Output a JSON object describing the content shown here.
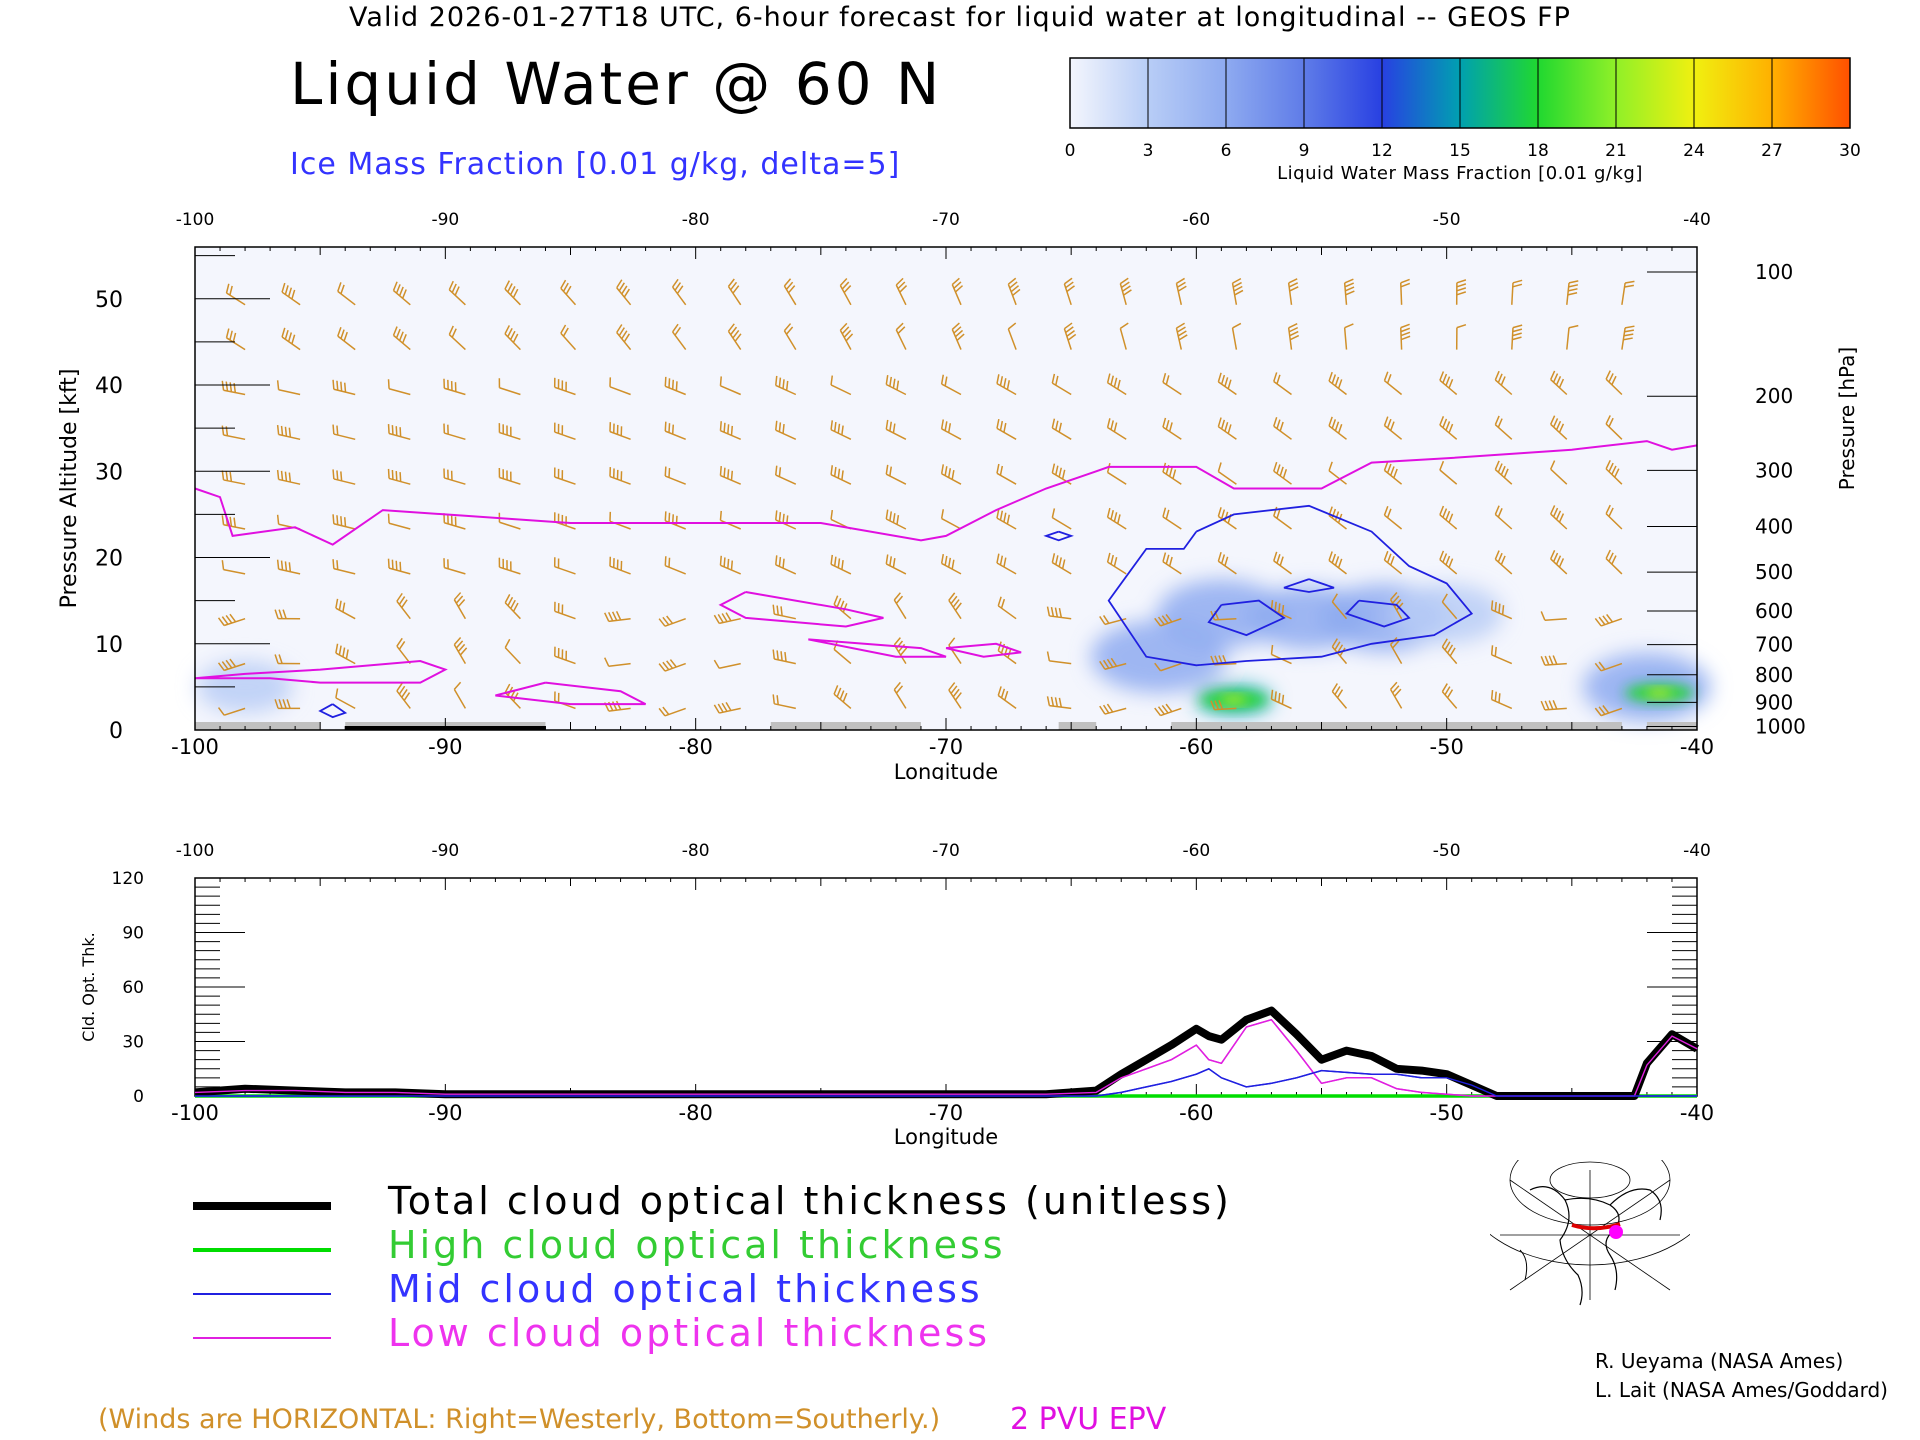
{
  "header": {
    "valid_line": "Valid 2026-01-27T18 UTC, 6-hour forecast for liquid water at longitudinal -- GEOS FP",
    "title": "Liquid Water @ 60 N",
    "subtitle": "Ice Mass Fraction [0.01 g/kg, delta=5]"
  },
  "colorbar": {
    "ticks": [
      "0",
      "3",
      "6",
      "9",
      "12",
      "15",
      "18",
      "21",
      "24",
      "27",
      "30"
    ],
    "colors": [
      "#f4f6fd",
      "#b8cdf6",
      "#8eaaf0",
      "#5f7ce8",
      "#2840e2",
      "#00a0b0",
      "#20d830",
      "#90f028",
      "#f0f010",
      "#ffb000",
      "#ff5000"
    ],
    "label": "Liquid Water Mass Fraction [0.01 g/kg]"
  },
  "chart_data": [
    {
      "type": "heatmap",
      "title": "Liquid Water @ 60 N",
      "xlabel": "Longitude",
      "ylabel_left": "Pressure Altitude [kft]",
      "ylabel_right": "Pressure [hPa]",
      "xlim": [
        -100,
        -40
      ],
      "ylim": [
        0,
        56
      ],
      "x_ticks": [
        "-100",
        "-90",
        "-80",
        "-70",
        "-60",
        "-50",
        "-40"
      ],
      "y_ticks": [
        "0",
        "10",
        "20",
        "30",
        "40",
        "50"
      ],
      "pressure_ticks": [
        {
          "label": "100",
          "kft": 53.1
        },
        {
          "label": "200",
          "kft": 38.7
        },
        {
          "label": "300",
          "kft": 30.1
        },
        {
          "label": "400",
          "kft": 23.6
        },
        {
          "label": "500",
          "kft": 18.3
        },
        {
          "label": "600",
          "kft": 13.8
        },
        {
          "label": "700",
          "kft": 9.9
        },
        {
          "label": "800",
          "kft": 6.4
        },
        {
          "label": "900",
          "kft": 3.2
        },
        {
          "label": "1000",
          "kft": 0.4
        }
      ],
      "liquid_blobs": [
        {
          "lon": -58.5,
          "kft": 3.5,
          "value": 15
        },
        {
          "lon": -41.5,
          "kft": 4.3,
          "value": 15
        },
        {
          "lon": -59.0,
          "kft": 13.5,
          "value": 6
        },
        {
          "lon": -55.5,
          "kft": 13.0,
          "value": 5
        },
        {
          "lon": -52.5,
          "kft": 13.0,
          "value": 6
        },
        {
          "lon": -50.0,
          "kft": 13.5,
          "value": 4
        },
        {
          "lon": -61.5,
          "kft": 8.5,
          "value": 7
        },
        {
          "lon": -42.0,
          "kft": 5.0,
          "value": 6
        },
        {
          "lon": -98.0,
          "kft": 5.0,
          "value": 2
        }
      ],
      "epv_2pvu_kft": {
        "lon": [
          -100,
          -99,
          -98.5,
          -96,
          -94.5,
          -92.5,
          -90,
          -85,
          -80,
          -75,
          -71,
          -70,
          -68,
          -66,
          -64,
          -63.5,
          -60,
          -58.5,
          -55,
          -53,
          -50,
          -45,
          -42,
          -41,
          -40
        ],
        "kft": [
          28,
          27,
          22.5,
          23.5,
          21.5,
          25.5,
          25,
          24,
          24,
          24,
          22,
          22.5,
          25.5,
          28,
          30,
          30.5,
          30.5,
          28,
          28,
          31,
          31.5,
          32.5,
          33.5,
          32.5,
          33
        ]
      },
      "epv_low_contours_kft": [
        {
          "lon": [
            -100,
            -97,
            -95,
            -91,
            -90,
            -91,
            -95,
            -98,
            -100
          ],
          "kft": [
            6,
            6,
            5.5,
            5.5,
            7,
            8,
            7,
            6.5,
            6
          ]
        },
        {
          "lon": [
            -78,
            -74,
            -72.5,
            -74,
            -78,
            -79,
            -78
          ],
          "kft": [
            16,
            14,
            13,
            12,
            13,
            14.5,
            16
          ]
        },
        {
          "lon": [
            -86,
            -83,
            -82,
            -85,
            -88,
            -86
          ],
          "kft": [
            5.5,
            4.5,
            3,
            3,
            4,
            5.5
          ]
        },
        {
          "lon": [
            -75.5,
            -71,
            -70,
            -72,
            -75.5
          ],
          "kft": [
            10.5,
            9.5,
            8.5,
            8.5,
            10.5
          ]
        },
        {
          "lon": [
            -70,
            -68,
            -67,
            -68.5,
            -70
          ],
          "kft": [
            9.5,
            10,
            9,
            8.5,
            9.5
          ]
        }
      ],
      "ice_contours_kft": [
        {
          "lon": [
            -60,
            -58.5,
            -55.5,
            -53,
            -51.5,
            -50,
            -49,
            -50.5,
            -53,
            -55,
            -58,
            -60,
            -62,
            -63.5,
            -62,
            -60.5,
            -60
          ],
          "kft": [
            23,
            25,
            26,
            23,
            19,
            17,
            13.5,
            11,
            10,
            8.5,
            8,
            7.5,
            8.5,
            15,
            21,
            21,
            23
          ]
        },
        {
          "lon": [
            -59,
            -57.5,
            -56.5,
            -58,
            -59.5,
            -59
          ],
          "kft": [
            14.5,
            15,
            13,
            11,
            12.5,
            14.5
          ]
        },
        {
          "lon": [
            -53.5,
            -52,
            -51.5,
            -52.5,
            -54,
            -53.5
          ],
          "kft": [
            15,
            14.5,
            13,
            12,
            13.5,
            15
          ]
        },
        {
          "lon": [
            -55.5,
            -54.5,
            -55.5,
            -56.5,
            -55.5
          ],
          "kft": [
            17.5,
            16.5,
            16,
            16.5,
            17.5
          ]
        },
        {
          "lon": [
            -94.5,
            -94,
            -94.5,
            -95,
            -94.5
          ],
          "kft": [
            3.0,
            2.0,
            1.5,
            2.2,
            3.0
          ]
        },
        {
          "lon": [
            -65.5,
            -65,
            -65.5,
            -66,
            -65.5
          ],
          "kft": [
            23,
            22.5,
            22,
            22.5,
            23
          ]
        }
      ],
      "wind_note": "(Winds are HORIZONTAL: Right=Westerly, Bottom=Southerly.)",
      "epv_label": "2 PVU EPV"
    },
    {
      "type": "line",
      "xlabel": "Longitude",
      "ylabel": "Cld. Opt. Thk.",
      "xlim": [
        -100,
        -40
      ],
      "ylim": [
        0,
        120
      ],
      "x_ticks": [
        "-100",
        "-90",
        "-80",
        "-70",
        "-60",
        "-50",
        "-40"
      ],
      "y_ticks": [
        "0",
        "30",
        "60",
        "90",
        "120"
      ],
      "x": [
        -100,
        -98,
        -96,
        -94,
        -92,
        -90,
        -88,
        -86,
        -84,
        -82,
        -80,
        -78,
        -76,
        -74,
        -72,
        -70,
        -68,
        -66,
        -64,
        -63,
        -62,
        -61,
        -60,
        -59.5,
        -59,
        -58,
        -57,
        -56,
        -55,
        -54,
        -53,
        -52,
        -51,
        -50,
        -49,
        -48,
        -47,
        -46,
        -45,
        -44,
        -43,
        -42.5,
        -42,
        -41,
        -40
      ],
      "series": [
        {
          "name": "Total cloud optical thickness (unitless)",
          "color": "#000000",
          "values": [
            2,
            4,
            3,
            2,
            2,
            1,
            1,
            1,
            1,
            1,
            1,
            1,
            1,
            1,
            1,
            1,
            1,
            1,
            3,
            12,
            20,
            28,
            37,
            33,
            31,
            42,
            47,
            34,
            20,
            25,
            22,
            15,
            14,
            12,
            6,
            0,
            0,
            0,
            0,
            0,
            0,
            0,
            18,
            34,
            26
          ]
        },
        {
          "name": "High cloud optical thickness",
          "color": "#00dd00",
          "values": [
            0,
            0,
            0,
            0,
            0,
            0,
            0,
            0,
            0,
            0,
            0,
            0,
            0,
            0,
            0,
            0,
            0,
            0,
            0,
            0,
            0,
            0,
            0,
            0,
            0,
            0,
            0,
            0,
            0,
            0,
            0,
            0,
            0,
            0,
            0,
            0,
            0,
            0,
            0,
            0,
            0,
            0,
            0,
            0,
            0
          ]
        },
        {
          "name": "Mid cloud optical thickness",
          "color": "#2020e0",
          "values": [
            0,
            0,
            0,
            0,
            0,
            0,
            0,
            0,
            0,
            0,
            0,
            0,
            0,
            0,
            0,
            0,
            0,
            0,
            0,
            2,
            5,
            8,
            12,
            15,
            10,
            5,
            7,
            10,
            14,
            13,
            12,
            12,
            10,
            10,
            6,
            0,
            0,
            0,
            0,
            0,
            0,
            0,
            0,
            0,
            0
          ]
        },
        {
          "name": "Low cloud optical thickness",
          "color": "#e020e0",
          "values": [
            2,
            3,
            3,
            2,
            2,
            1,
            1,
            1,
            1,
            1,
            1,
            1,
            1,
            1,
            1,
            1,
            1,
            1,
            2,
            10,
            15,
            20,
            28,
            20,
            18,
            38,
            42,
            25,
            7,
            10,
            10,
            4,
            2,
            1,
            0,
            0,
            0,
            0,
            0,
            0,
            0,
            0,
            17,
            33,
            26
          ]
        }
      ]
    }
  ],
  "legend": [
    {
      "label": "Total cloud optical thickness (unitless)",
      "color": "#000000",
      "text_color": "#000000"
    },
    {
      "label": "High cloud optical thickness",
      "color": "#00dd00",
      "text_color": "#33cc33"
    },
    {
      "label": "Mid cloud optical thickness",
      "color": "#2020e0",
      "text_color": "#3333ff"
    },
    {
      "label": "Low cloud optical thickness",
      "color": "#e020e0",
      "text_color": "#ee33ee"
    }
  ],
  "credits": [
    "R. Ueyama (NASA Ames)",
    "L. Lait (NASA Ames/Goddard)"
  ],
  "colors": {
    "wind_barb": "#d0902a",
    "epv": "#e010e0",
    "ice": "#2020e0",
    "ground": "#c0c0c0"
  },
  "inset_map": {
    "icon": "globe-map-icon",
    "marker_color": "#ff00ff",
    "track_color": "#dd0000"
  }
}
